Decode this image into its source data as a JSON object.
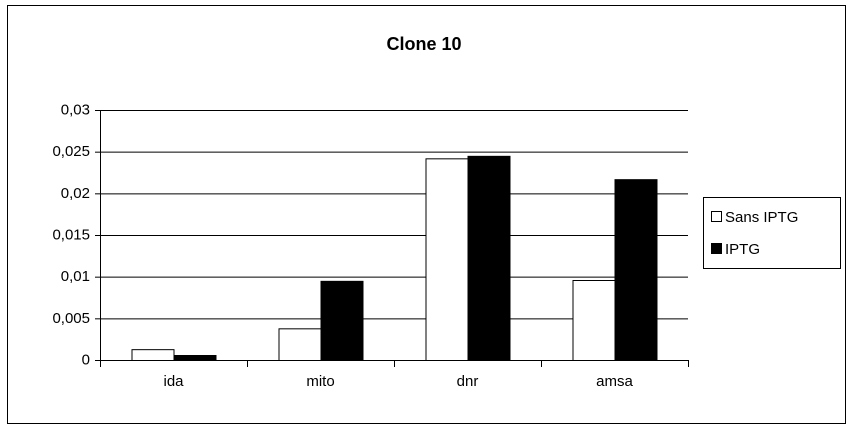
{
  "chart_data": {
    "type": "bar",
    "title": "Clone 10",
    "categories": [
      "ida",
      "mito",
      "dnr",
      "amsa"
    ],
    "series": [
      {
        "name": "Sans IPTG",
        "color": "#ffffff",
        "values": [
          0.0013,
          0.0038,
          0.0242,
          0.0096
        ]
      },
      {
        "name": "IPTG",
        "color": "#000000",
        "values": [
          0.0006,
          0.0095,
          0.0245,
          0.0217
        ]
      }
    ],
    "ylim": [
      0,
      0.03
    ],
    "yticks": [
      0,
      {
        "value": 0.005,
        "label": "0,005"
      },
      {
        "value": 0.01,
        "label": "0,01"
      },
      {
        "value": 0.015,
        "label": "0,015"
      },
      {
        "value": 0.02,
        "label": "0,02"
      },
      {
        "value": 0.025,
        "label": "0,025"
      },
      {
        "value": 0.03,
        "label": "0,03"
      }
    ],
    "grid": true,
    "legend": "right"
  }
}
